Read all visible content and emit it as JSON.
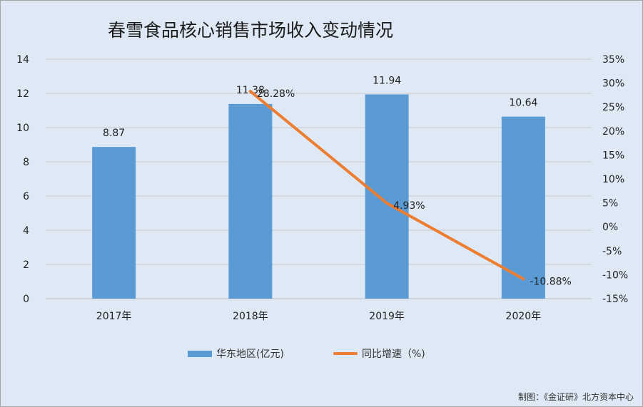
{
  "chart_data": {
    "type": "bar",
    "title": "春雪食品核心销售市场收入变动情况",
    "categories": [
      "2017年",
      "2018年",
      "2019年",
      "2020年"
    ],
    "series": [
      {
        "name": "华东地区(亿元)",
        "type": "bar",
        "axis": "left",
        "color": "#5b9bd5",
        "values": [
          8.87,
          11.38,
          11.94,
          10.64
        ],
        "labels": [
          "8.87",
          "11.38",
          "11.94",
          "10.64"
        ]
      },
      {
        "name": "同比增速（%)",
        "type": "line",
        "axis": "right",
        "color": "#ed7d31",
        "values": [
          null,
          28.28,
          4.93,
          -10.88
        ],
        "labels": [
          "",
          "28.28%",
          "4.93%",
          "-10.88%"
        ]
      }
    ],
    "y_left": {
      "min": 0,
      "max": 14,
      "step": 2,
      "ticks": [
        "0",
        "2",
        "4",
        "6",
        "8",
        "10",
        "12",
        "14"
      ]
    },
    "y_right": {
      "min": -15,
      "max": 35,
      "step": 5,
      "ticks": [
        "-15%",
        "-10%",
        "-5%",
        "0%",
        "5%",
        "10%",
        "15%",
        "20%",
        "25%",
        "30%",
        "35%"
      ]
    },
    "grid": true,
    "legend_position": "bottom"
  },
  "credit": "制图：《金证研》北方资本中心"
}
